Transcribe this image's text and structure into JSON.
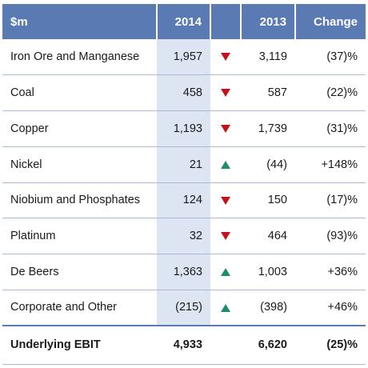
{
  "table": {
    "headers": {
      "segment": "$m",
      "y2014": "2014",
      "y2013": "2013",
      "change": "Change"
    },
    "rows": [
      {
        "segment": "Iron Ore and Manganese",
        "y2014": "1,957",
        "trend": "down",
        "y2013": "3,119",
        "change": "(37)%"
      },
      {
        "segment": "Coal",
        "y2014": "458",
        "trend": "down",
        "y2013": "587",
        "change": "(22)%"
      },
      {
        "segment": "Copper",
        "y2014": "1,193",
        "trend": "down",
        "y2013": "1,739",
        "change": "(31)%"
      },
      {
        "segment": "Nickel",
        "y2014": "21",
        "trend": "up",
        "y2013": "(44)",
        "change": "+148%"
      },
      {
        "segment": "Niobium and Phosphates",
        "y2014": "124",
        "trend": "down",
        "y2013": "150",
        "change": "(17)%"
      },
      {
        "segment": "Platinum",
        "y2014": "32",
        "trend": "down",
        "y2013": "464",
        "change": "(93)%"
      },
      {
        "segment": "De Beers",
        "y2014": "1,363",
        "trend": "up",
        "y2013": "1,003",
        "change": "+36%"
      },
      {
        "segment": "Corporate and Other",
        "y2014": "(215)",
        "trend": "up",
        "y2013": "(398)",
        "change": "+46%"
      }
    ],
    "total": {
      "segment": "Underlying EBIT",
      "y2014": "4,933",
      "y2013": "6,620",
      "change": "(25)%"
    }
  },
  "colors": {
    "header_bg": "#5a7ab4",
    "highlight_column_bg": "#dde4f2",
    "down_indicator": "#c4121a",
    "up_indicator": "#1e8c6e"
  }
}
